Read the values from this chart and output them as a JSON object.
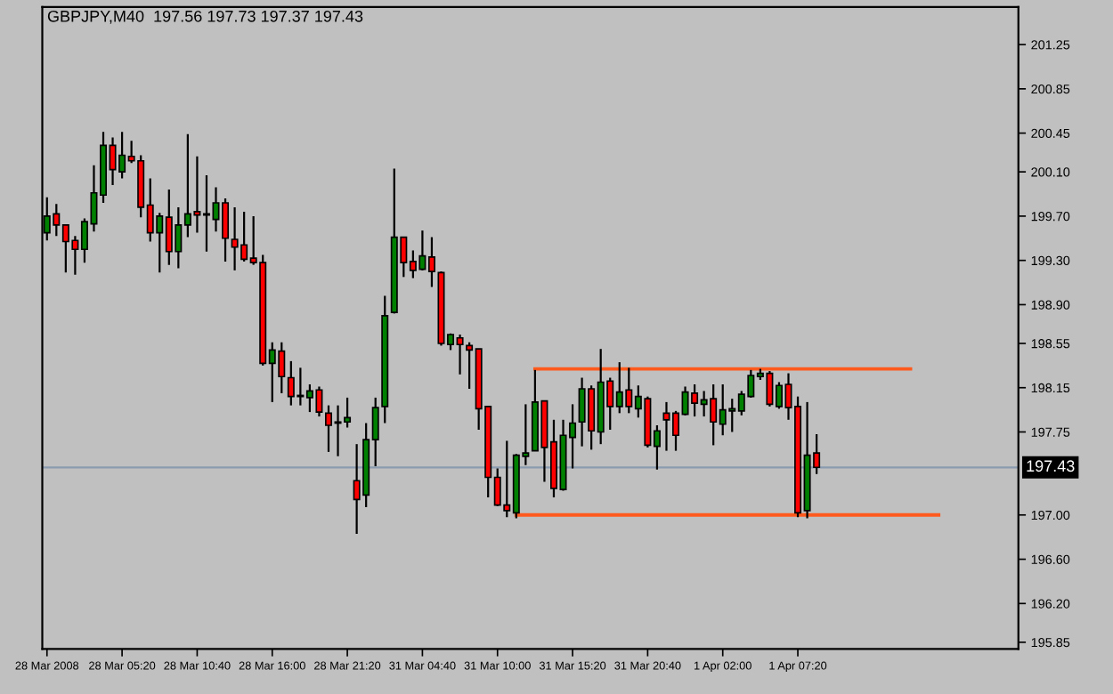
{
  "chart_data": {
    "type": "candlestick",
    "title": "GBPJPY,M40  197.56 197.73 197.37 197.43",
    "categories": [
      "28 Mar 2008",
      null,
      null,
      null,
      null,
      null,
      null,
      null,
      "28 Mar 05:20",
      null,
      null,
      null,
      null,
      null,
      null,
      null,
      "28 Mar 10:40",
      null,
      null,
      null,
      null,
      null,
      null,
      null,
      "28 Mar 16:00",
      null,
      null,
      null,
      null,
      null,
      null,
      null,
      "28 Mar 21:20",
      null,
      null,
      null,
      null,
      null,
      null,
      null,
      "31 Mar 04:40",
      null,
      null,
      null,
      null,
      null,
      null,
      null,
      "31 Mar 10:00",
      null,
      null,
      null,
      null,
      null,
      null,
      null,
      "31 Mar 15:20",
      null,
      null,
      null,
      null,
      null,
      null,
      null,
      "31 Mar 20:40",
      null,
      null,
      null,
      null,
      null,
      null,
      null,
      "1 Apr 02:00",
      null,
      null,
      null,
      null,
      null,
      null,
      null,
      "1 Apr 07:20",
      null,
      null,
      null,
      null,
      null,
      null,
      null,
      null,
      null,
      null,
      null,
      null,
      null,
      null,
      null,
      null,
      null,
      null,
      null,
      null,
      null,
      null,
      null
    ],
    "ohlc": [
      [
        199.55,
        199.87,
        199.48,
        199.7
      ],
      [
        199.72,
        199.81,
        199.52,
        199.62
      ],
      [
        199.62,
        199.62,
        199.19,
        199.47
      ],
      [
        199.48,
        199.52,
        199.17,
        199.4
      ],
      [
        199.4,
        199.68,
        199.28,
        199.65
      ],
      [
        199.63,
        200.16,
        199.56,
        199.91
      ],
      [
        199.89,
        200.46,
        199.82,
        200.34
      ],
      [
        200.34,
        200.41,
        199.98,
        200.12
      ],
      [
        200.1,
        200.46,
        200.04,
        200.25
      ],
      [
        200.24,
        200.38,
        200.18,
        200.2
      ],
      [
        200.2,
        200.25,
        199.69,
        199.78
      ],
      [
        199.8,
        200.04,
        199.47,
        199.55
      ],
      [
        199.55,
        199.73,
        199.19,
        199.7
      ],
      [
        199.69,
        199.94,
        199.26,
        199.38
      ],
      [
        199.38,
        199.78,
        199.23,
        199.62
      ],
      [
        199.62,
        200.44,
        199.51,
        199.72
      ],
      [
        199.74,
        200.24,
        199.55,
        199.71
      ],
      [
        199.72,
        200.07,
        199.38,
        199.71
      ],
      [
        199.67,
        199.96,
        199.56,
        199.82
      ],
      [
        199.82,
        199.86,
        199.29,
        199.5
      ],
      [
        199.49,
        199.78,
        199.21,
        199.42
      ],
      [
        199.44,
        199.74,
        199.29,
        199.31
      ],
      [
        199.32,
        199.7,
        199.26,
        199.28
      ],
      [
        199.28,
        199.35,
        198.35,
        198.37
      ],
      [
        198.37,
        198.56,
        198.02,
        198.49
      ],
      [
        198.48,
        198.56,
        198.1,
        198.25
      ],
      [
        198.24,
        198.39,
        197.99,
        198.07
      ],
      [
        198.08,
        198.33,
        197.99,
        198.07
      ],
      [
        198.06,
        198.18,
        197.93,
        198.12
      ],
      [
        198.13,
        198.16,
        197.89,
        197.93
      ],
      [
        197.92,
        197.99,
        197.57,
        197.81
      ],
      [
        197.84,
        197.99,
        197.53,
        197.83
      ],
      [
        197.84,
        198.06,
        197.79,
        197.88
      ],
      [
        197.31,
        197.64,
        196.83,
        197.14
      ],
      [
        197.18,
        197.83,
        197.07,
        197.68
      ],
      [
        197.68,
        198.06,
        197.44,
        197.97
      ],
      [
        197.98,
        198.98,
        197.83,
        198.8
      ],
      [
        198.83,
        200.13,
        198.82,
        199.51
      ],
      [
        199.51,
        199.51,
        199.15,
        199.28
      ],
      [
        199.29,
        199.39,
        199.14,
        199.21
      ],
      [
        199.22,
        199.57,
        199.21,
        199.34
      ],
      [
        199.33,
        199.51,
        199.06,
        199.2
      ],
      [
        199.19,
        199.2,
        198.53,
        198.55
      ],
      [
        198.54,
        198.64,
        198.49,
        198.63
      ],
      [
        198.6,
        198.63,
        198.27,
        198.54
      ],
      [
        198.53,
        198.56,
        198.14,
        198.49
      ],
      [
        198.5,
        198.5,
        197.77,
        197.96
      ],
      [
        197.98,
        197.98,
        197.16,
        197.34
      ],
      [
        197.34,
        197.42,
        197.08,
        197.09
      ],
      [
        197.09,
        197.67,
        196.98,
        197.04
      ],
      [
        197.02,
        197.55,
        196.97,
        197.54
      ],
      [
        197.53,
        198.0,
        197.45,
        197.56
      ],
      [
        197.58,
        198.31,
        197.58,
        198.02
      ],
      [
        198.03,
        198.03,
        197.3,
        197.61
      ],
      [
        197.66,
        197.86,
        197.16,
        197.24
      ],
      [
        197.23,
        197.86,
        197.22,
        197.72
      ],
      [
        197.7,
        198.0,
        197.42,
        197.83
      ],
      [
        197.84,
        198.24,
        197.62,
        198.14
      ],
      [
        198.14,
        198.17,
        197.59,
        197.76
      ],
      [
        197.75,
        198.5,
        197.64,
        198.2
      ],
      [
        198.21,
        198.24,
        197.77,
        197.98
      ],
      [
        197.98,
        198.38,
        197.92,
        198.11
      ],
      [
        198.13,
        198.33,
        197.92,
        197.98
      ],
      [
        197.96,
        198.17,
        197.88,
        198.07
      ],
      [
        198.05,
        198.07,
        197.61,
        197.63
      ],
      [
        197.62,
        197.81,
        197.41,
        197.76
      ],
      [
        197.92,
        198.02,
        197.58,
        197.86
      ],
      [
        197.92,
        197.94,
        197.58,
        197.72
      ],
      [
        197.91,
        198.16,
        197.9,
        198.11
      ],
      [
        198.1,
        198.18,
        197.89,
        198.01
      ],
      [
        198.0,
        198.12,
        197.89,
        198.04
      ],
      [
        198.05,
        198.18,
        197.63,
        197.84
      ],
      [
        197.82,
        198.18,
        197.72,
        197.95
      ],
      [
        197.94,
        198.05,
        197.75,
        197.96
      ],
      [
        197.94,
        198.12,
        197.9,
        198.09
      ],
      [
        198.07,
        198.31,
        198.06,
        198.26
      ],
      [
        198.25,
        198.32,
        198.22,
        198.28
      ],
      [
        198.28,
        198.3,
        197.98,
        198.0
      ],
      [
        197.98,
        198.2,
        197.96,
        198.17
      ],
      [
        198.18,
        198.28,
        197.86,
        197.97
      ],
      [
        197.98,
        198.07,
        196.98,
        197.02
      ],
      [
        197.04,
        198.02,
        196.97,
        197.54
      ],
      [
        197.56,
        197.73,
        197.37,
        197.43
      ],
      null,
      null,
      null,
      null,
      null,
      null,
      null,
      null,
      null,
      null,
      null,
      null,
      null,
      null,
      null,
      null,
      null,
      null,
      null,
      null,
      null
    ],
    "colors": [
      "#008000",
      "#ff0000",
      "#ff0000",
      "#ff0000",
      "#008000",
      "#008000",
      "#008000",
      "#ff0000",
      "#008000",
      "#ff0000",
      "#ff0000",
      "#ff0000",
      "#008000",
      "#ff0000",
      "#008000",
      "#008000",
      "#ff0000",
      "#ff0000",
      "#008000",
      "#ff0000",
      "#ff0000",
      "#ff0000",
      "#ff0000",
      "#ff0000",
      "#008000",
      "#ff0000",
      "#ff0000",
      "#ff0000",
      "#008000",
      "#ff0000",
      "#ff0000",
      "#ff0000",
      "#008000",
      "#ff0000",
      "#008000",
      "#008000",
      "#008000",
      "#008000",
      "#ff0000",
      "#ff0000",
      "#008000",
      "#ff0000",
      "#ff0000",
      "#008000",
      "#ff0000",
      "#ff0000",
      "#ff0000",
      "#ff0000",
      "#ff0000",
      "#ff0000",
      "#008000",
      "#008000",
      "#008000",
      "#ff0000",
      "#ff0000",
      "#008000",
      "#008000",
      "#008000",
      "#ff0000",
      "#008000",
      "#ff0000",
      "#008000",
      "#ff0000",
      "#008000",
      "#ff0000",
      "#008000",
      "#ff0000",
      "#ff0000",
      "#008000",
      "#ff0000",
      "#008000",
      "#ff0000",
      "#008000",
      "#008000",
      "#008000",
      "#008000",
      "#008000",
      "#ff0000",
      "#008000",
      "#ff0000",
      "#ff0000",
      "#008000",
      "#ff0000",
      null,
      null,
      null,
      null,
      null,
      null,
      null,
      null,
      null,
      null,
      null,
      null,
      null,
      null,
      null,
      null,
      null,
      null,
      null,
      null,
      null
    ],
    "series": [
      {
        "type": "line",
        "color": "#ff5a1e",
        "values": [
          null,
          null,
          null,
          null,
          null,
          null,
          null,
          null,
          null,
          null,
          null,
          null,
          null,
          null,
          null,
          null,
          null,
          null,
          null,
          null,
          null,
          null,
          null,
          null,
          null,
          null,
          null,
          null,
          null,
          null,
          null,
          null,
          null,
          null,
          null,
          null,
          null,
          null,
          null,
          null,
          null,
          null,
          null,
          null,
          null,
          null,
          null,
          null,
          null,
          null,
          null,
          null,
          198.32,
          198.32,
          198.32,
          198.32,
          198.32,
          198.32,
          198.32,
          198.32,
          198.32,
          198.32,
          198.32,
          198.32,
          198.32,
          198.32,
          198.32,
          198.32,
          198.32,
          198.32,
          198.32,
          198.32,
          198.32,
          198.32,
          198.32,
          198.32,
          198.32,
          198.32,
          198.32,
          198.32,
          198.32,
          198.32,
          198.32,
          198.32,
          198.32,
          198.32,
          198.32,
          198.32,
          198.32,
          198.32,
          198.32,
          198.32,
          198.32,
          null,
          null,
          null,
          null,
          null,
          null,
          null,
          null,
          null,
          null,
          null
        ]
      },
      {
        "type": "line",
        "color": "#ff5a1e",
        "values": [
          null,
          null,
          null,
          null,
          null,
          null,
          null,
          null,
          null,
          null,
          null,
          null,
          null,
          null,
          null,
          null,
          null,
          null,
          null,
          null,
          null,
          null,
          null,
          null,
          null,
          null,
          null,
          null,
          null,
          null,
          null,
          null,
          null,
          null,
          null,
          null,
          null,
          null,
          null,
          null,
          null,
          null,
          null,
          null,
          null,
          null,
          null,
          null,
          null,
          null,
          197.0,
          197.0,
          197.0,
          197.0,
          197.0,
          197.0,
          197.0,
          197.0,
          197.0,
          197.0,
          197.0,
          197.0,
          197.0,
          197.0,
          197.0,
          197.0,
          197.0,
          197.0,
          197.0,
          197.0,
          197.0,
          197.0,
          197.0,
          197.0,
          197.0,
          197.0,
          197.0,
          197.0,
          197.0,
          197.0,
          197.0,
          197.0,
          197.0,
          197.0,
          197.0,
          197.0,
          197.0,
          197.0,
          197.0,
          197.0,
          197.0,
          197.0,
          197.0,
          197.0,
          197.0,
          197.0,
          null,
          null,
          null,
          null,
          null,
          null,
          null,
          null
        ]
      }
    ],
    "ref_lines": [
      {
        "axis": "y",
        "value": 197.43,
        "label": "197.43",
        "color": "#8a9bb0"
      }
    ],
    "ylim": [
      195.79,
      201.59
    ],
    "yticks": [
      {
        "value": 195.85,
        "label": "195.85"
      },
      {
        "value": 196.2,
        "label": "196.20"
      },
      {
        "value": 196.6,
        "label": "196.60"
      },
      {
        "value": 197.0,
        "label": "197.00"
      },
      {
        "value": 197.75,
        "label": "197.75"
      },
      {
        "value": 198.15,
        "label": "198.15"
      },
      {
        "value": 198.55,
        "label": "198.55"
      },
      {
        "value": 198.9,
        "label": "198.90"
      },
      {
        "value": 199.3,
        "label": "199.30"
      },
      {
        "value": 199.7,
        "label": "199.70"
      },
      {
        "value": 200.1,
        "label": "200.10"
      },
      {
        "value": 200.45,
        "label": "200.45"
      },
      {
        "value": 200.85,
        "label": "200.85"
      },
      {
        "value": 201.25,
        "label": "201.25"
      }
    ]
  }
}
